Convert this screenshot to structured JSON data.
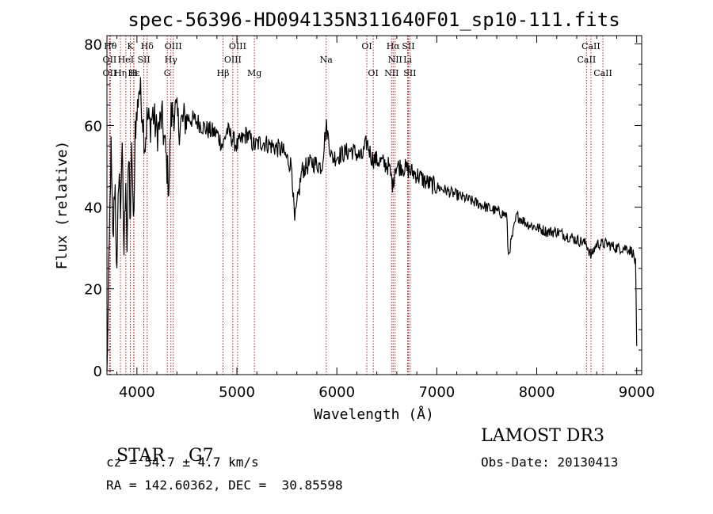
{
  "chart_data": {
    "type": "line",
    "title": "spec-56396-HD094135N311640F01_sp10-111.fits",
    "xlabel": "Wavelength (Å)",
    "ylabel": "Flux (relative)",
    "xlim": [
      3700,
      9050
    ],
    "ylim": [
      -1,
      82
    ],
    "x_ticks": [
      4000,
      5000,
      6000,
      7000,
      8000,
      9000
    ],
    "y_ticks": [
      0,
      20,
      40,
      60,
      80
    ],
    "grid": false,
    "series": [
      {
        "name": "spectrum",
        "x": [
          3700,
          3720,
          3740,
          3760,
          3780,
          3800,
          3820,
          3835,
          3850,
          3870,
          3889,
          3900,
          3920,
          3933,
          3950,
          3968,
          3980,
          4000,
          4020,
          4050,
          4080,
          4102,
          4130,
          4160,
          4200,
          4250,
          4300,
          4320,
          4340,
          4380,
          4420,
          4500,
          4600,
          4700,
          4800,
          4861,
          4900,
          4950,
          5000,
          5100,
          5172,
          5250,
          5350,
          5450,
          5550,
          5577,
          5650,
          5750,
          5850,
          5893,
          5950,
          6050,
          6150,
          6250,
          6300,
          6350,
          6450,
          6520,
          6563,
          6580,
          6650,
          6720,
          6800,
          6900,
          7000,
          7100,
          7200,
          7300,
          7400,
          7500,
          7600,
          7700,
          7715,
          7800,
          7900,
          8000,
          8100,
          8200,
          8300,
          8400,
          8500,
          8542,
          8600,
          8700,
          8800,
          8900,
          8960,
          8990,
          9000
        ],
        "values": [
          0,
          25,
          55,
          30,
          48,
          22,
          52,
          38,
          56,
          28,
          50,
          30,
          54,
          35,
          56,
          30,
          60,
          62,
          70,
          65,
          55,
          62,
          60,
          63,
          58,
          62,
          50,
          45,
          62,
          64,
          60,
          62,
          61,
          59,
          58,
          55,
          59,
          57,
          55,
          58,
          55,
          56,
          55,
          54,
          50,
          36,
          49,
          51,
          50,
          60,
          52,
          53,
          54,
          52,
          56,
          52,
          51,
          50,
          45,
          50,
          50,
          49,
          48,
          46,
          45,
          44,
          43,
          42,
          41,
          40,
          39,
          38,
          28,
          38,
          36,
          35,
          34,
          34,
          33,
          32,
          31,
          28,
          31,
          31,
          30,
          30,
          29,
          26,
          6
        ]
      }
    ],
    "lines": [
      {
        "label": "Hθ",
        "x": 3734,
        "row": 0
      },
      {
        "label": "OII",
        "x": 3727,
        "row": 1
      },
      {
        "label": "OII",
        "x": 3727,
        "row": 2
      },
      {
        "label": "K",
        "x": 3934,
        "row": 0
      },
      {
        "label": "HeI",
        "x": 3889,
        "row": 1
      },
      {
        "label": "Hε",
        "x": 3970,
        "row": 2
      },
      {
        "label": "Hη",
        "x": 3835,
        "row": 2
      },
      {
        "label": "Hδ",
        "x": 4102,
        "row": 0
      },
      {
        "label": "SII",
        "x": 4069,
        "row": 1
      },
      {
        "label": "H",
        "x": 3968,
        "row": 2
      },
      {
        "label": "OIII",
        "x": 4363,
        "row": 0
      },
      {
        "label": "Hγ",
        "x": 4340,
        "row": 1
      },
      {
        "label": "G",
        "x": 4304,
        "row": 2
      },
      {
        "label": "Hβ",
        "x": 4861,
        "row": 2
      },
      {
        "label": "OIII",
        "x": 5007,
        "row": 0
      },
      {
        "label": "OIII",
        "x": 4959,
        "row": 1
      },
      {
        "label": "Mg",
        "x": 5175,
        "row": 2
      },
      {
        "label": "Na",
        "x": 5893,
        "row": 1
      },
      {
        "label": "OI",
        "x": 6300,
        "row": 0
      },
      {
        "label": "OI",
        "x": 6364,
        "row": 2
      },
      {
        "label": "Hα",
        "x": 6563,
        "row": 0
      },
      {
        "label": "SII",
        "x": 6716,
        "row": 0
      },
      {
        "label": "NII",
        "x": 6583,
        "row": 1
      },
      {
        "label": "Li",
        "x": 6708,
        "row": 1
      },
      {
        "label": "NII",
        "x": 6548,
        "row": 2
      },
      {
        "label": "SII",
        "x": 6731,
        "row": 2
      },
      {
        "label": "CaII",
        "x": 8542,
        "row": 0
      },
      {
        "label": "CaII",
        "x": 8498,
        "row": 1
      },
      {
        "label": "CaII",
        "x": 8662,
        "row": 2
      }
    ]
  },
  "info": {
    "class_label": "STAR",
    "subclass": "G7",
    "survey": "LAMOST DR3",
    "cz_text": "cz = 54.7 ± 4.7 km/s",
    "obs_date_text": "Obs-Date: 20130413",
    "coords_text": "RA = 142.60362, DEC =  30.85598"
  },
  "colors": {
    "axes": "#000000",
    "spectrum": "#000000",
    "line_markers": "#b22222"
  }
}
